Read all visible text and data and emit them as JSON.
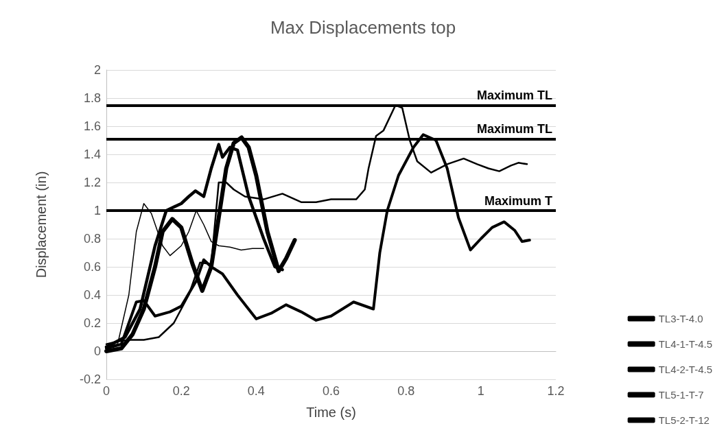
{
  "chart_data": {
    "type": "line",
    "title": "Max Displacements top",
    "xlabel": "Time (s)",
    "ylabel": "Displacement (in)",
    "xlim": [
      0,
      1.2
    ],
    "xticks": [
      0,
      0.2,
      0.4,
      0.6,
      0.8,
      1,
      1.2
    ],
    "ylim": [
      -0.2,
      2
    ],
    "yticks": [
      -0.2,
      0,
      0.2,
      0.4,
      0.6,
      0.8,
      1,
      1.2,
      1.4,
      1.6,
      1.8,
      2
    ],
    "grid": "y",
    "legend": "bottom right",
    "marker": "none",
    "line_style": "solid",
    "ref_lines": [
      {
        "axis": "y",
        "value": 1.75,
        "label": "Maximum TL",
        "color": "#000000"
      },
      {
        "axis": "y",
        "value": 1.51,
        "label": "Maximum TL",
        "color": "#000000"
      },
      {
        "axis": "y",
        "value": 1,
        "label": "Maximum T",
        "color": "#000000"
      }
    ],
    "series": [
      {
        "name": "TL3-T-4.0",
        "color": "#000000",
        "x": [
          0,
          0.03,
          0.06,
          0.08,
          0.1,
          0.12,
          0.15,
          0.17,
          0.2,
          0.22,
          0.24,
          0.26,
          0.28,
          0.3,
          0.33,
          0.36,
          0.39,
          0.42
        ],
        "values": [
          0.03,
          0.05,
          0.4,
          0.85,
          1.05,
          0.98,
          0.75,
          0.68,
          0.75,
          0.85,
          1.0,
          0.9,
          0.78,
          0.75,
          0.74,
          0.72,
          0.73,
          0.73
        ]
      },
      {
        "name": "TL4-1-T-4.5",
        "color": "#000000",
        "x": [
          0,
          0.04,
          0.07,
          0.1,
          0.13,
          0.15,
          0.176,
          0.2,
          0.23,
          0.256,
          0.28,
          0.3,
          0.32,
          0.34,
          0.361,
          0.38,
          0.4,
          0.43,
          0.46,
          0.48,
          0.503
        ],
        "values": [
          0,
          0.02,
          0.12,
          0.3,
          0.6,
          0.85,
          0.94,
          0.88,
          0.62,
          0.43,
          0.6,
          0.95,
          1.3,
          1.48,
          1.52,
          1.45,
          1.25,
          0.85,
          0.57,
          0.66,
          0.79
        ]
      },
      {
        "name": "TL4-2-T-4.5",
        "color": "#000000",
        "x": [
          0,
          0.05,
          0.09,
          0.13,
          0.16,
          0.2,
          0.22,
          0.238,
          0.26,
          0.28,
          0.3,
          0.31,
          0.33,
          0.35,
          0.38,
          0.42,
          0.45,
          0.47
        ],
        "values": [
          0.03,
          0.1,
          0.3,
          0.75,
          1.0,
          1.05,
          1.1,
          1.14,
          1.1,
          1.3,
          1.47,
          1.38,
          1.45,
          1.43,
          1.1,
          0.8,
          0.6,
          0.58
        ]
      },
      {
        "name": "TL5-1-T-7",
        "color": "#000000",
        "x": [
          0,
          0.04,
          0.08,
          0.1,
          0.13,
          0.17,
          0.2,
          0.24,
          0.26,
          0.28,
          0.31,
          0.35,
          0.4,
          0.44,
          0.48,
          0.52,
          0.56,
          0.6,
          0.66,
          0.713,
          0.73,
          0.75,
          0.78,
          0.82,
          0.846,
          0.88,
          0.91,
          0.94,
          0.972,
          1.0,
          1.03,
          1.062,
          1.09,
          1.11,
          1.13
        ],
        "values": [
          0.02,
          0.05,
          0.35,
          0.36,
          0.25,
          0.28,
          0.32,
          0.5,
          0.65,
          0.6,
          0.55,
          0.4,
          0.23,
          0.27,
          0.33,
          0.28,
          0.22,
          0.25,
          0.35,
          0.3,
          0.7,
          1.0,
          1.25,
          1.45,
          1.54,
          1.5,
          1.3,
          0.95,
          0.72,
          0.8,
          0.88,
          0.92,
          0.86,
          0.78,
          0.79
        ]
      },
      {
        "name": "TL5-2-T-12",
        "color": "#000000",
        "x": [
          0,
          0.03,
          0.06,
          0.1,
          0.14,
          0.18,
          0.22,
          0.25,
          0.28,
          0.3,
          0.32,
          0.34,
          0.37,
          0.42,
          0.47,
          0.52,
          0.56,
          0.6,
          0.667,
          0.69,
          0.7,
          0.72,
          0.74,
          0.772,
          0.79,
          0.81,
          0.83,
          0.867,
          0.91,
          0.954,
          0.99,
          1.02,
          1.049,
          1.08,
          1.1,
          1.123
        ],
        "values": [
          0.05,
          0.07,
          0.08,
          0.08,
          0.1,
          0.2,
          0.4,
          0.63,
          0.62,
          1.2,
          1.2,
          1.15,
          1.1,
          1.08,
          1.12,
          1.06,
          1.06,
          1.08,
          1.08,
          1.15,
          1.3,
          1.53,
          1.57,
          1.75,
          1.73,
          1.5,
          1.35,
          1.27,
          1.33,
          1.37,
          1.33,
          1.3,
          1.28,
          1.32,
          1.34,
          1.33
        ]
      }
    ]
  }
}
